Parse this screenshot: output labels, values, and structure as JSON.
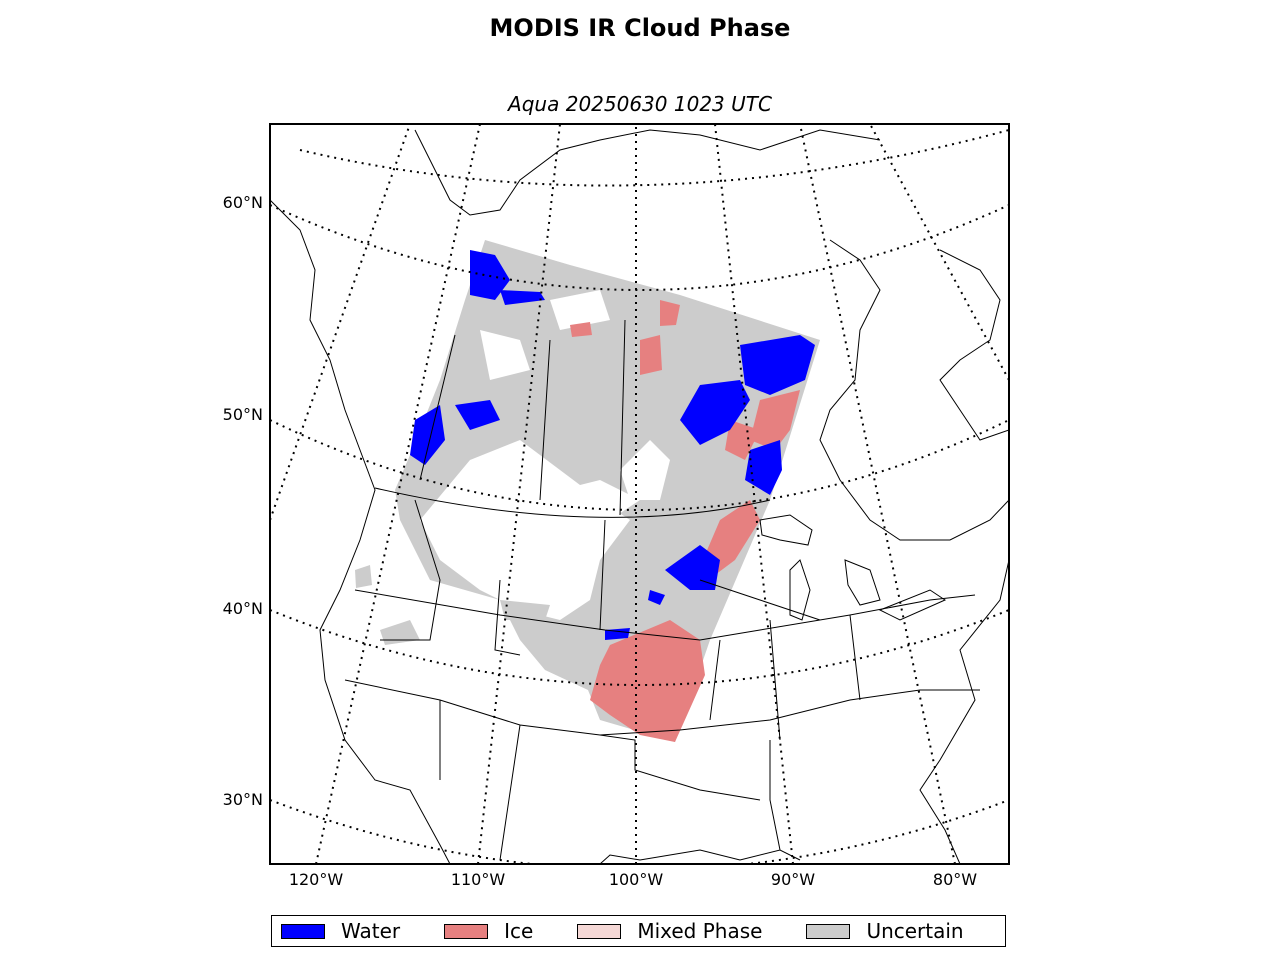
{
  "title": "MODIS IR Cloud Phase",
  "subtitle": "Aqua 20250630 1023 UTC",
  "lat_labels": [
    "60°N",
    "50°N",
    "40°N",
    "30°N"
  ],
  "lon_labels": [
    "120°W",
    "110°W",
    "100°W",
    "90°W",
    "80°W"
  ],
  "legend": [
    {
      "label": "Water",
      "color": "#0000ff"
    },
    {
      "label": "Ice",
      "color": "#e68080"
    },
    {
      "label": "Mixed Phase",
      "color": "#f5d8d6"
    },
    {
      "label": "Uncertain",
      "color": "#cccccc"
    }
  ],
  "colors": {
    "water": "#0000ff",
    "ice": "#e68080",
    "mixed": "#f5d8d6",
    "uncertain": "#cccccc"
  }
}
